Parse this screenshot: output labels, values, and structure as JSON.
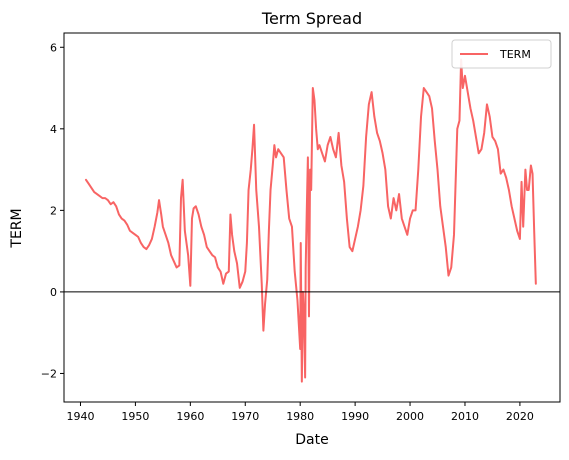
{
  "chart_data": {
    "type": "line",
    "title": "Term Spread",
    "xlabel": "Date",
    "ylabel": "TERM",
    "xlim": [
      1937.0,
      2027.3
    ],
    "ylim": [
      -2.7,
      6.35
    ],
    "x_ticks": [
      1940,
      1950,
      1960,
      1970,
      1980,
      1990,
      2000,
      2010,
      2020
    ],
    "x_tick_labels": [
      "1940",
      "1950",
      "1960",
      "1970",
      "1980",
      "1990",
      "2000",
      "2010",
      "2020"
    ],
    "y_ticks": [
      -2,
      0,
      2,
      4,
      6
    ],
    "y_tick_labels": [
      "−2",
      "0",
      "2",
      "4",
      "6"
    ],
    "reference_line_y": 0,
    "legend": {
      "position": "top-right",
      "label": "TERM"
    },
    "grid": false,
    "series": [
      {
        "name": "TERM",
        "color": "#f86464",
        "x": [
          1941.0,
          1941.5,
          1942.0,
          1942.5,
          1943.0,
          1943.5,
          1944.0,
          1944.5,
          1945.0,
          1945.5,
          1946.0,
          1946.5,
          1947.0,
          1947.5,
          1948.0,
          1948.5,
          1949.0,
          1949.5,
          1950.0,
          1950.5,
          1951.0,
          1951.5,
          1952.0,
          1952.5,
          1953.0,
          1953.5,
          1954.0,
          1954.3,
          1954.7,
          1955.0,
          1955.5,
          1956.0,
          1956.5,
          1957.0,
          1957.5,
          1958.0,
          1958.3,
          1958.6,
          1959.0,
          1959.3,
          1959.6,
          1960.0,
          1960.3,
          1960.6,
          1961.0,
          1961.5,
          1962.0,
          1962.5,
          1963.0,
          1963.5,
          1964.0,
          1964.5,
          1965.0,
          1965.5,
          1966.0,
          1966.5,
          1967.0,
          1967.3,
          1967.6,
          1968.0,
          1968.5,
          1969.0,
          1969.5,
          1970.0,
          1970.3,
          1970.6,
          1971.0,
          1971.3,
          1971.6,
          1972.0,
          1972.5,
          1973.0,
          1973.3,
          1973.6,
          1974.0,
          1974.3,
          1974.6,
          1975.0,
          1975.3,
          1975.6,
          1976.0,
          1976.5,
          1977.0,
          1977.5,
          1978.0,
          1978.5,
          1979.0,
          1979.5,
          1980.0,
          1980.1,
          1980.3,
          1980.5,
          1980.7,
          1980.9,
          1981.0,
          1981.2,
          1981.4,
          1981.6,
          1981.8,
          1982.0,
          1982.3,
          1982.6,
          1982.9,
          1983.2,
          1983.5,
          1984.0,
          1984.5,
          1985.0,
          1985.5,
          1986.0,
          1986.5,
          1987.0,
          1987.5,
          1988.0,
          1988.5,
          1989.0,
          1989.5,
          1990.0,
          1990.5,
          1991.0,
          1991.5,
          1992.0,
          1992.5,
          1993.0,
          1993.5,
          1994.0,
          1994.5,
          1995.0,
          1995.5,
          1996.0,
          1996.5,
          1997.0,
          1997.5,
          1998.0,
          1998.5,
          1999.0,
          1999.5,
          2000.0,
          2000.5,
          2001.0,
          2001.5,
          2002.0,
          2002.5,
          2003.0,
          2003.5,
          2004.0,
          2004.5,
          2005.0,
          2005.5,
          2006.0,
          2006.5,
          2007.0,
          2007.5,
          2008.0,
          2008.3,
          2008.6,
          2009.0,
          2009.3,
          2009.6,
          2010.0,
          2010.5,
          2011.0,
          2011.5,
          2012.0,
          2012.5,
          2013.0,
          2013.5,
          2014.0,
          2014.5,
          2015.0,
          2015.5,
          2016.0,
          2016.5,
          2017.0,
          2017.5,
          2018.0,
          2018.5,
          2019.0,
          2019.5,
          2020.0,
          2020.3,
          2020.6,
          2021.0,
          2021.3,
          2021.6,
          2022.0,
          2022.3,
          2022.6,
          2022.9
        ],
        "y": [
          2.75,
          2.65,
          2.55,
          2.45,
          2.4,
          2.35,
          2.3,
          2.3,
          2.25,
          2.15,
          2.2,
          2.1,
          1.9,
          1.8,
          1.75,
          1.65,
          1.5,
          1.45,
          1.4,
          1.35,
          1.2,
          1.1,
          1.05,
          1.15,
          1.3,
          1.6,
          1.95,
          2.25,
          1.9,
          1.6,
          1.4,
          1.2,
          0.9,
          0.75,
          0.6,
          0.65,
          2.3,
          2.75,
          1.5,
          1.2,
          0.9,
          0.15,
          1.8,
          2.05,
          2.1,
          1.9,
          1.6,
          1.4,
          1.1,
          1.0,
          0.9,
          0.85,
          0.6,
          0.5,
          0.2,
          0.45,
          0.5,
          1.9,
          1.4,
          1.0,
          0.7,
          0.1,
          0.25,
          0.5,
          1.2,
          2.5,
          3.0,
          3.5,
          4.1,
          2.5,
          1.6,
          0.2,
          -0.95,
          -0.3,
          0.3,
          1.5,
          2.5,
          3.1,
          3.6,
          3.3,
          3.5,
          3.4,
          3.3,
          2.5,
          1.8,
          1.6,
          0.5,
          -0.2,
          -1.4,
          1.2,
          -2.2,
          0.0,
          -0.6,
          -2.1,
          0.6,
          2.0,
          3.3,
          -0.6,
          3.0,
          2.5,
          5.0,
          4.7,
          4.0,
          3.5,
          3.6,
          3.4,
          3.2,
          3.6,
          3.8,
          3.5,
          3.3,
          3.9,
          3.1,
          2.7,
          1.8,
          1.1,
          1.0,
          1.3,
          1.6,
          2.0,
          2.6,
          3.8,
          4.6,
          4.9,
          4.3,
          3.9,
          3.7,
          3.4,
          3.0,
          2.1,
          1.8,
          2.3,
          2.0,
          2.4,
          1.8,
          1.6,
          1.4,
          1.8,
          2.0,
          2.0,
          3.0,
          4.3,
          5.0,
          4.9,
          4.8,
          4.5,
          3.7,
          3.0,
          2.1,
          1.6,
          1.1,
          0.4,
          0.6,
          1.4,
          2.7,
          4.0,
          4.2,
          5.7,
          5.0,
          5.3,
          4.9,
          4.5,
          4.2,
          3.8,
          3.4,
          3.5,
          3.9,
          4.6,
          4.3,
          3.8,
          3.7,
          3.5,
          2.9,
          3.0,
          2.8,
          2.5,
          2.1,
          1.8,
          1.5,
          1.3,
          2.7,
          1.6,
          3.0,
          2.5,
          2.5,
          3.1,
          2.9,
          1.5,
          0.2
        ]
      }
    ]
  }
}
